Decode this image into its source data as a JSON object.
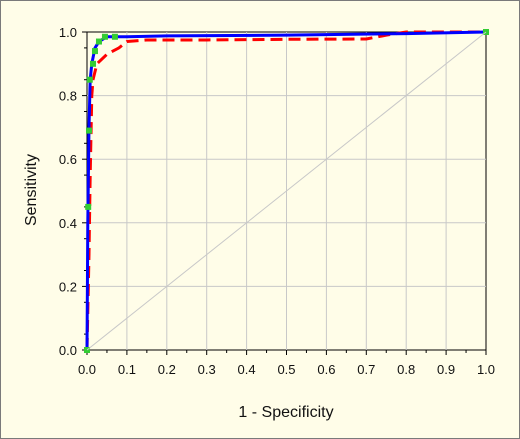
{
  "chart_data": {
    "type": "line",
    "xlabel": "1 - Specificity",
    "ylabel": "Sensitivity",
    "xlim": [
      0,
      1
    ],
    "ylim": [
      0,
      1
    ],
    "x_ticks": [
      "0.0",
      "0.1",
      "0.2",
      "0.3",
      "0.4",
      "0.5",
      "0.6",
      "0.7",
      "0.8",
      "0.9",
      "1.0"
    ],
    "y_ticks": [
      "0.0",
      "0.2",
      "0.4",
      "0.6",
      "0.8",
      "1.0"
    ],
    "grid": true,
    "background": "#fffde8",
    "series": [
      {
        "style": "dashed",
        "color": "#ff0000",
        "points": [
          [
            0,
            0
          ],
          [
            0.005,
            0.3
          ],
          [
            0.008,
            0.55
          ],
          [
            0.012,
            0.8
          ],
          [
            0.015,
            0.85
          ],
          [
            0.025,
            0.9
          ],
          [
            0.05,
            0.93
          ],
          [
            0.08,
            0.95
          ],
          [
            0.1,
            0.97
          ],
          [
            0.15,
            0.975
          ],
          [
            0.3,
            0.975
          ],
          [
            0.5,
            0.977
          ],
          [
            0.7,
            0.978
          ],
          [
            0.75,
            0.99
          ],
          [
            0.8,
            1.0
          ],
          [
            1.0,
            1.0
          ]
        ]
      },
      {
        "style": "solid",
        "color": "#0000ff",
        "points": [
          [
            0,
            0
          ],
          [
            0.002,
            0.4
          ],
          [
            0.005,
            0.7
          ],
          [
            0.008,
            0.85
          ],
          [
            0.012,
            0.9
          ],
          [
            0.02,
            0.95
          ],
          [
            0.03,
            0.97
          ],
          [
            0.05,
            0.985
          ],
          [
            0.1,
            0.985
          ],
          [
            0.2,
            0.988
          ],
          [
            0.5,
            0.99
          ],
          [
            0.8,
            0.995
          ],
          [
            1.0,
            1.0
          ]
        ]
      },
      {
        "style": "markers",
        "color": "#33cc33",
        "points": [
          [
            0,
            0
          ],
          [
            0.003,
            0.45
          ],
          [
            0.005,
            0.69
          ],
          [
            0.007,
            0.85
          ],
          [
            0.015,
            0.9
          ],
          [
            0.02,
            0.94
          ],
          [
            0.03,
            0.97
          ],
          [
            0.045,
            0.985
          ],
          [
            0.07,
            0.985
          ],
          [
            1.0,
            1.0
          ]
        ]
      },
      {
        "style": "reference",
        "color": "#c8c8c8",
        "points": [
          [
            0,
            0
          ],
          [
            1,
            1
          ]
        ]
      }
    ]
  }
}
